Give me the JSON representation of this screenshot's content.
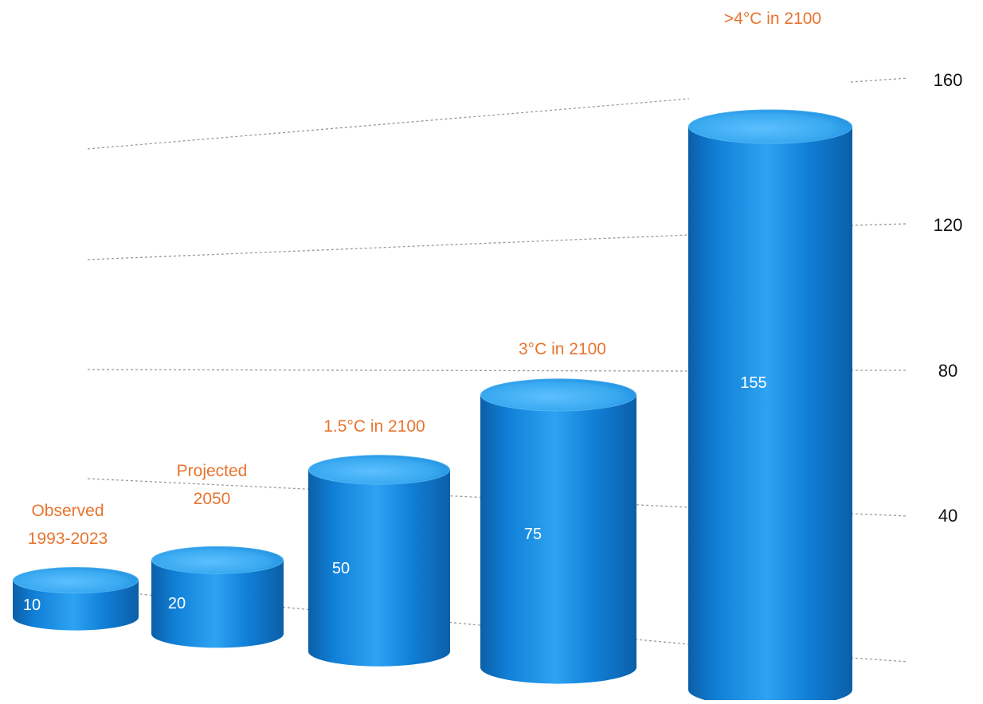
{
  "chart_data": {
    "type": "bar",
    "style": "3d-cylinder",
    "categories": [
      [
        "Observed",
        "1993-2023"
      ],
      [
        "Projected",
        "2050"
      ],
      [
        "1.5°C in 2100"
      ],
      [
        "3°C in 2100"
      ],
      [
        ">4°C in 2100"
      ]
    ],
    "values": [
      10,
      20,
      50,
      75,
      155
    ],
    "data_labels": [
      "10",
      "20",
      "50",
      "75",
      "155"
    ],
    "yticks": [
      "40",
      "80",
      "120",
      "160"
    ],
    "ylim": [
      0,
      160
    ],
    "title": "",
    "xlabel": "",
    "ylabel": "",
    "grid": true,
    "grid_style": "dotted",
    "axis_position": "right",
    "colors": {
      "bar_light": "#2ea3f2",
      "bar_mid": "#1180d8",
      "bar_dark": "#0b5fa8",
      "bar_top": "#39a9f0",
      "category_label": "#e8742f",
      "grid": "#9a9a9a"
    }
  }
}
